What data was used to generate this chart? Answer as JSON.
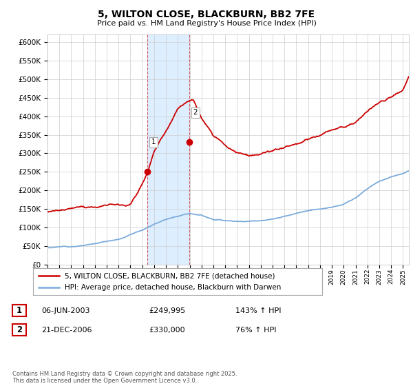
{
  "title": "5, WILTON CLOSE, BLACKBURN, BB2 7FE",
  "subtitle": "Price paid vs. HM Land Registry's House Price Index (HPI)",
  "background_color": "#ffffff",
  "plot_bg_color": "#ffffff",
  "grid_color": "#cccccc",
  "ylim": [
    0,
    620000
  ],
  "yticks": [
    0,
    50000,
    100000,
    150000,
    200000,
    250000,
    300000,
    350000,
    400000,
    450000,
    500000,
    550000,
    600000
  ],
  "xlim_start": 1995.0,
  "xlim_end": 2025.5,
  "sale1_x": 2003.44,
  "sale1_y": 249995,
  "sale2_x": 2006.97,
  "sale2_y": 330000,
  "sale1_date": "06-JUN-2003",
  "sale1_price": "£249,995",
  "sale1_hpi": "143% ↑ HPI",
  "sale2_date": "21-DEC-2006",
  "sale2_price": "£330,000",
  "sale2_hpi": "76% ↑ HPI",
  "legend_label_red": "5, WILTON CLOSE, BLACKBURN, BB2 7FE (detached house)",
  "legend_label_blue": "HPI: Average price, detached house, Blackburn with Darwen",
  "footer": "Contains HM Land Registry data © Crown copyright and database right 2025.\nThis data is licensed under the Open Government Licence v3.0.",
  "red_color": "#cc0000",
  "blue_color": "#7aabdb",
  "shade_color": "#ddeeff",
  "vline_color": "#cc0000"
}
